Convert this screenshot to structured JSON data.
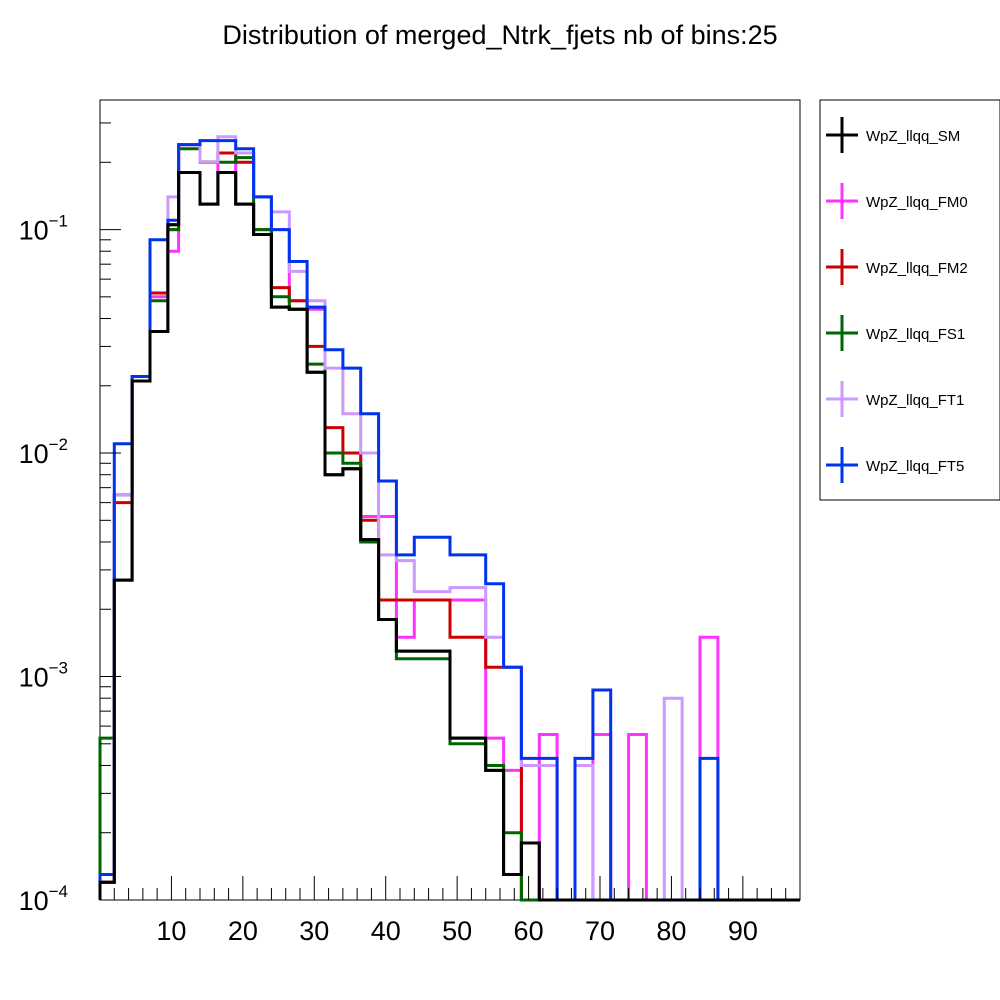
{
  "chart_data": {
    "type": "histogram",
    "title": "Distribution of merged_Ntrk_fjets nb of bins:25",
    "xlabel": "",
    "ylabel": "",
    "x_scale": "linear",
    "y_scale": "log",
    "xlim": [
      0,
      98
    ],
    "ylim": [
      0.0001,
      0.38
    ],
    "grid": false,
    "legend_placement": "right",
    "x_ticks": [
      10,
      20,
      30,
      40,
      50,
      60,
      70,
      80,
      90
    ],
    "y_ticks": [
      {
        "base": "10",
        "exp": "−4",
        "value": 0.0001
      },
      {
        "base": "10",
        "exp": "−3",
        "value": 0.001
      },
      {
        "base": "10",
        "exp": "−2",
        "value": 0.01
      },
      {
        "base": "10",
        "exp": "−1",
        "value": 0.1
      }
    ],
    "bin_edges": [
      0,
      2,
      4.5,
      7,
      9.5,
      11,
      14,
      16.5,
      19,
      21.5,
      24,
      26.5,
      29,
      31.5,
      34,
      36.5,
      39,
      41.5,
      44,
      49,
      54,
      56.5,
      59,
      61.5,
      64,
      66.5,
      69,
      71.5,
      74,
      76.5,
      79,
      81.5,
      84,
      86.5,
      89,
      91.5,
      94,
      98
    ],
    "series": [
      {
        "name": "WpZ_llqq_SM",
        "color": "#000000",
        "values": [
          0.00012,
          0.0027,
          0.021,
          0.035,
          0.105,
          0.18,
          0.13,
          0.18,
          0.13,
          0.095,
          0.045,
          0.044,
          0.023,
          0.008,
          0.0085,
          0.0041,
          0.0018,
          0.0013,
          0.0013,
          0.00053,
          0.00038,
          0.00013,
          0.00018,
          0.0001,
          0.0001,
          0.0001,
          0.0001,
          0.0001,
          0.0001,
          0.0001,
          0.0001,
          0.0001,
          0.0001,
          0.0001,
          0.0001,
          0.0001,
          0.0001
        ]
      },
      {
        "name": "WpZ_llqq_FM0",
        "color": "#ff33ff",
        "values": [
          0.00012,
          0.0065,
          0.021,
          0.05,
          0.08,
          0.24,
          0.2,
          0.18,
          0.22,
          0.14,
          0.1,
          0.048,
          0.044,
          0.01,
          0.01,
          0.0052,
          0.0052,
          0.0015,
          0.0022,
          0.0022,
          0.00053,
          0.00038,
          0.0001,
          0.00055,
          0.0001,
          0.0001,
          0.00055,
          0.0001,
          0.00055,
          0.0001,
          0.0001,
          0.0001,
          0.0015,
          0.0001,
          0.0001,
          0.0001,
          0.0001
        ]
      },
      {
        "name": "WpZ_llqq_FM2",
        "color": "#cc0000",
        "values": [
          0.00012,
          0.006,
          0.022,
          0.052,
          0.1,
          0.24,
          0.2,
          0.22,
          0.2,
          0.1,
          0.055,
          0.048,
          0.03,
          0.013,
          0.01,
          0.005,
          0.0022,
          0.0022,
          0.0022,
          0.0015,
          0.0011,
          0.0011,
          0.0001,
          0.0001,
          0.0001,
          0.0001,
          0.0001,
          0.0001,
          0.0001,
          0.0001,
          0.0001,
          0.0001,
          0.0001,
          0.0001,
          0.0001,
          0.0001,
          0.0001
        ]
      },
      {
        "name": "WpZ_llqq_FS1",
        "color": "#006600",
        "values": [
          0.00053,
          0.0065,
          0.021,
          0.048,
          0.1,
          0.23,
          0.2,
          0.2,
          0.21,
          0.1,
          0.05,
          0.044,
          0.025,
          0.01,
          0.009,
          0.004,
          0.0018,
          0.0012,
          0.0012,
          0.0005,
          0.0004,
          0.0002,
          0.0001,
          0.0001,
          0.0001,
          0.0001,
          0.0001,
          0.0001,
          0.0001,
          0.0001,
          0.0001,
          0.0001,
          0.0001,
          0.0001,
          0.0001,
          0.0001,
          0.0001
        ]
      },
      {
        "name": "WpZ_llqq_FT1",
        "color": "#cc99ff",
        "values": [
          0.00013,
          0.0065,
          0.021,
          0.035,
          0.14,
          0.24,
          0.2,
          0.26,
          0.22,
          0.14,
          0.12,
          0.065,
          0.048,
          0.024,
          0.015,
          0.01,
          0.0035,
          0.0033,
          0.0024,
          0.0025,
          0.0015,
          0.0011,
          0.0004,
          0.0004,
          0.0001,
          0.0004,
          0.0001,
          0.0001,
          0.0001,
          0.0001,
          0.0008,
          0.0001,
          0.0001,
          0.0001,
          0.0001,
          0.0001,
          0.0001
        ]
      },
      {
        "name": "WpZ_llqq_FT5",
        "color": "#0033ee",
        "values": [
          0.00013,
          0.011,
          0.022,
          0.09,
          0.11,
          0.24,
          0.25,
          0.25,
          0.23,
          0.14,
          0.1,
          0.072,
          0.045,
          0.029,
          0.024,
          0.015,
          0.0075,
          0.0035,
          0.0042,
          0.0035,
          0.0026,
          0.0011,
          0.00043,
          0.00043,
          0.0001,
          0.00043,
          0.00087,
          0.0001,
          0.0001,
          0.0001,
          0.0001,
          0.0001,
          0.00043,
          0.0001,
          0.0001,
          0.0001,
          0.0001
        ]
      }
    ]
  }
}
